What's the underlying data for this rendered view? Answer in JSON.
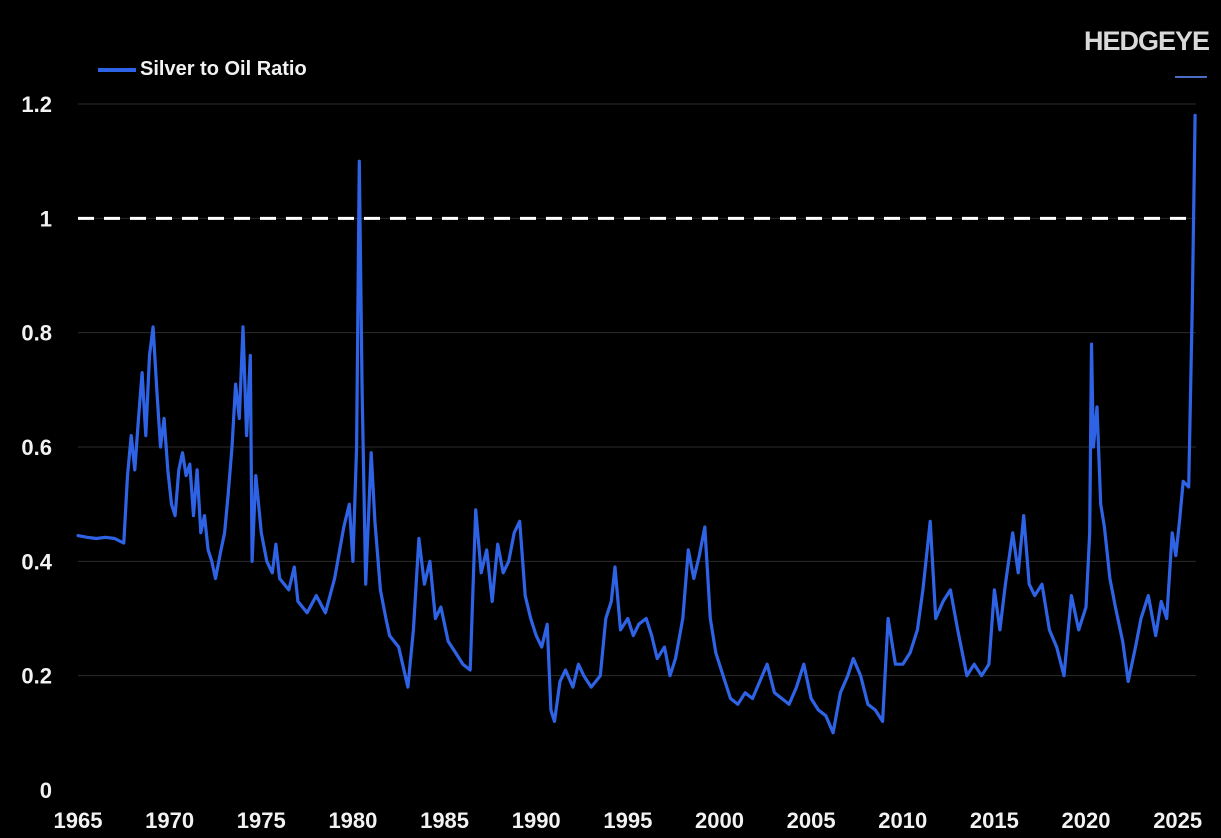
{
  "brand": {
    "name": "HEDGEYE"
  },
  "colors": {
    "background": "#000000",
    "series": "#2f63e6",
    "reference_line": "#ffffff",
    "grid": "#2b2b2b",
    "text": "#f2f2f2"
  },
  "chart_data": {
    "type": "line",
    "title": "",
    "xlabel": "",
    "ylabel": "",
    "xlim": [
      1965,
      2026
    ],
    "ylim": [
      0,
      1.2
    ],
    "x_ticks": [
      1965,
      1970,
      1975,
      1980,
      1985,
      1990,
      1995,
      2000,
      2005,
      2010,
      2015,
      2020,
      2025
    ],
    "y_ticks": [
      0,
      0.2,
      0.4,
      0.6,
      0.8,
      1,
      1.2
    ],
    "grid": "horizontal",
    "legend": "top-left",
    "reference_lines": [
      {
        "y": 1,
        "style": "dashed",
        "color": "#ffffff"
      }
    ],
    "series": [
      {
        "name": "Silver to Oil Ratio",
        "color": "#2f63e6",
        "points": [
          [
            1965.0,
            0.445
          ],
          [
            1965.5,
            0.442
          ],
          [
            1966.0,
            0.44
          ],
          [
            1966.5,
            0.442
          ],
          [
            1967.0,
            0.44
          ],
          [
            1967.3,
            0.435
          ],
          [
            1967.5,
            0.432
          ],
          [
            1967.7,
            0.55
          ],
          [
            1967.9,
            0.62
          ],
          [
            1968.1,
            0.56
          ],
          [
            1968.3,
            0.65
          ],
          [
            1968.5,
            0.73
          ],
          [
            1968.7,
            0.62
          ],
          [
            1968.9,
            0.76
          ],
          [
            1969.1,
            0.81
          ],
          [
            1969.3,
            0.7
          ],
          [
            1969.5,
            0.6
          ],
          [
            1969.7,
            0.65
          ],
          [
            1969.9,
            0.56
          ],
          [
            1970.1,
            0.5
          ],
          [
            1970.3,
            0.48
          ],
          [
            1970.5,
            0.56
          ],
          [
            1970.7,
            0.59
          ],
          [
            1970.9,
            0.55
          ],
          [
            1971.1,
            0.57
          ],
          [
            1971.3,
            0.48
          ],
          [
            1971.5,
            0.56
          ],
          [
            1971.7,
            0.45
          ],
          [
            1971.9,
            0.48
          ],
          [
            1972.1,
            0.42
          ],
          [
            1972.3,
            0.4
          ],
          [
            1972.5,
            0.37
          ],
          [
            1972.8,
            0.42
          ],
          [
            1973.0,
            0.45
          ],
          [
            1973.2,
            0.52
          ],
          [
            1973.4,
            0.6
          ],
          [
            1973.6,
            0.71
          ],
          [
            1973.8,
            0.65
          ],
          [
            1974.0,
            0.81
          ],
          [
            1974.2,
            0.62
          ],
          [
            1974.4,
            0.76
          ],
          [
            1974.5,
            0.4
          ],
          [
            1974.7,
            0.55
          ],
          [
            1975.0,
            0.45
          ],
          [
            1975.3,
            0.4
          ],
          [
            1975.6,
            0.38
          ],
          [
            1975.8,
            0.43
          ],
          [
            1976.0,
            0.37
          ],
          [
            1976.5,
            0.35
          ],
          [
            1976.8,
            0.39
          ],
          [
            1977.0,
            0.33
          ],
          [
            1977.5,
            0.31
          ],
          [
            1978.0,
            0.34
          ],
          [
            1978.5,
            0.31
          ],
          [
            1979.0,
            0.37
          ],
          [
            1979.5,
            0.46
          ],
          [
            1979.8,
            0.5
          ],
          [
            1980.0,
            0.4
          ],
          [
            1980.2,
            0.6
          ],
          [
            1980.35,
            1.1
          ],
          [
            1980.5,
            0.7
          ],
          [
            1980.7,
            0.36
          ],
          [
            1981.0,
            0.59
          ],
          [
            1981.2,
            0.47
          ],
          [
            1981.5,
            0.35
          ],
          [
            1981.8,
            0.3
          ],
          [
            1982.0,
            0.27
          ],
          [
            1982.5,
            0.25
          ],
          [
            1983.0,
            0.18
          ],
          [
            1983.3,
            0.28
          ],
          [
            1983.6,
            0.44
          ],
          [
            1983.9,
            0.36
          ],
          [
            1984.2,
            0.4
          ],
          [
            1984.5,
            0.3
          ],
          [
            1984.8,
            0.32
          ],
          [
            1985.2,
            0.26
          ],
          [
            1985.6,
            0.24
          ],
          [
            1986.0,
            0.22
          ],
          [
            1986.4,
            0.21
          ],
          [
            1986.7,
            0.49
          ],
          [
            1987.0,
            0.38
          ],
          [
            1987.3,
            0.42
          ],
          [
            1987.6,
            0.33
          ],
          [
            1987.9,
            0.43
          ],
          [
            1988.2,
            0.38
          ],
          [
            1988.5,
            0.4
          ],
          [
            1988.8,
            0.45
          ],
          [
            1989.1,
            0.47
          ],
          [
            1989.4,
            0.34
          ],
          [
            1989.7,
            0.3
          ],
          [
            1990.0,
            0.27
          ],
          [
            1990.3,
            0.25
          ],
          [
            1990.6,
            0.29
          ],
          [
            1990.8,
            0.14
          ],
          [
            1991.0,
            0.12
          ],
          [
            1991.3,
            0.19
          ],
          [
            1991.6,
            0.21
          ],
          [
            1992.0,
            0.18
          ],
          [
            1992.3,
            0.22
          ],
          [
            1992.6,
            0.2
          ],
          [
            1993.0,
            0.18
          ],
          [
            1993.5,
            0.2
          ],
          [
            1993.8,
            0.3
          ],
          [
            1994.1,
            0.33
          ],
          [
            1994.3,
            0.39
          ],
          [
            1994.6,
            0.28
          ],
          [
            1995.0,
            0.3
          ],
          [
            1995.3,
            0.27
          ],
          [
            1995.6,
            0.29
          ],
          [
            1996.0,
            0.3
          ],
          [
            1996.3,
            0.27
          ],
          [
            1996.6,
            0.23
          ],
          [
            1997.0,
            0.25
          ],
          [
            1997.3,
            0.2
          ],
          [
            1997.6,
            0.23
          ],
          [
            1998.0,
            0.3
          ],
          [
            1998.3,
            0.42
          ],
          [
            1998.6,
            0.37
          ],
          [
            1998.9,
            0.41
          ],
          [
            1999.2,
            0.46
          ],
          [
            1999.5,
            0.3
          ],
          [
            1999.8,
            0.24
          ],
          [
            2000.2,
            0.2
          ],
          [
            2000.6,
            0.16
          ],
          [
            2001.0,
            0.15
          ],
          [
            2001.4,
            0.17
          ],
          [
            2001.8,
            0.16
          ],
          [
            2002.2,
            0.19
          ],
          [
            2002.6,
            0.22
          ],
          [
            2003.0,
            0.17
          ],
          [
            2003.4,
            0.16
          ],
          [
            2003.8,
            0.15
          ],
          [
            2004.2,
            0.18
          ],
          [
            2004.6,
            0.22
          ],
          [
            2005.0,
            0.16
          ],
          [
            2005.4,
            0.14
          ],
          [
            2005.8,
            0.13
          ],
          [
            2006.2,
            0.1
          ],
          [
            2006.6,
            0.17
          ],
          [
            2007.0,
            0.2
          ],
          [
            2007.3,
            0.23
          ],
          [
            2007.7,
            0.2
          ],
          [
            2008.1,
            0.15
          ],
          [
            2008.5,
            0.14
          ],
          [
            2008.9,
            0.12
          ],
          [
            2009.2,
            0.3
          ],
          [
            2009.6,
            0.22
          ],
          [
            2010.0,
            0.22
          ],
          [
            2010.4,
            0.24
          ],
          [
            2010.8,
            0.28
          ],
          [
            2011.1,
            0.35
          ],
          [
            2011.5,
            0.47
          ],
          [
            2011.8,
            0.3
          ],
          [
            2012.2,
            0.33
          ],
          [
            2012.6,
            0.35
          ],
          [
            2013.0,
            0.28
          ],
          [
            2013.5,
            0.2
          ],
          [
            2013.9,
            0.22
          ],
          [
            2014.3,
            0.2
          ],
          [
            2014.7,
            0.22
          ],
          [
            2015.0,
            0.35
          ],
          [
            2015.3,
            0.28
          ],
          [
            2015.6,
            0.36
          ],
          [
            2016.0,
            0.45
          ],
          [
            2016.3,
            0.38
          ],
          [
            2016.6,
            0.48
          ],
          [
            2016.9,
            0.36
          ],
          [
            2017.2,
            0.34
          ],
          [
            2017.6,
            0.36
          ],
          [
            2018.0,
            0.28
          ],
          [
            2018.4,
            0.25
          ],
          [
            2018.8,
            0.2
          ],
          [
            2019.2,
            0.34
          ],
          [
            2019.6,
            0.28
          ],
          [
            2020.0,
            0.32
          ],
          [
            2020.2,
            0.45
          ],
          [
            2020.3,
            0.78
          ],
          [
            2020.4,
            0.6
          ],
          [
            2020.6,
            0.67
          ],
          [
            2020.8,
            0.5
          ],
          [
            2021.0,
            0.46
          ],
          [
            2021.3,
            0.37
          ],
          [
            2021.6,
            0.32
          ],
          [
            2022.0,
            0.26
          ],
          [
            2022.3,
            0.19
          ],
          [
            2022.7,
            0.25
          ],
          [
            2023.0,
            0.3
          ],
          [
            2023.4,
            0.34
          ],
          [
            2023.8,
            0.27
          ],
          [
            2024.1,
            0.33
          ],
          [
            2024.4,
            0.3
          ],
          [
            2024.7,
            0.45
          ],
          [
            2024.9,
            0.41
          ],
          [
            2025.1,
            0.47
          ],
          [
            2025.3,
            0.54
          ],
          [
            2025.6,
            0.53
          ],
          [
            2025.8,
            0.85
          ],
          [
            2025.95,
            1.18
          ]
        ]
      }
    ]
  }
}
